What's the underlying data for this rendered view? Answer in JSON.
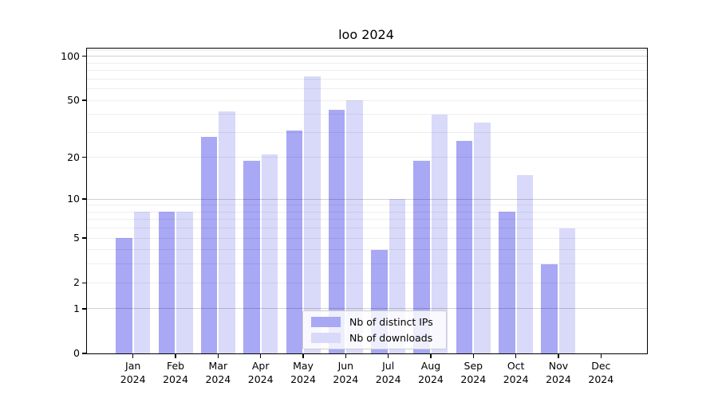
{
  "title": "loo 2024",
  "chart_data": {
    "type": "bar",
    "title": "loo 2024",
    "xlabel": "",
    "ylabel": "",
    "categories": [
      "Jan",
      "Feb",
      "Mar",
      "Apr",
      "May",
      "Jun",
      "Jul",
      "Aug",
      "Sep",
      "Oct",
      "Nov",
      "Dec"
    ],
    "year_line": "2024",
    "series": [
      {
        "name": "Nb of distinct IPs",
        "color": "#a8a8f5",
        "values": [
          5,
          8,
          28,
          19,
          31,
          43,
          4,
          19,
          26,
          8,
          3,
          0
        ]
      },
      {
        "name": "Nb of downloads",
        "color": "#d9d9fa",
        "values": [
          8,
          8,
          42,
          21,
          73,
          50,
          10,
          40,
          35,
          15,
          6,
          0
        ]
      }
    ],
    "yscale": "log1p",
    "ylim": [
      0,
      113
    ],
    "yticks": [
      0,
      1,
      2,
      5,
      10,
      20,
      50,
      100
    ],
    "major_gridlines": [
      1,
      10,
      100
    ],
    "minor_gridlines": [
      2,
      3,
      4,
      5,
      6,
      7,
      8,
      9,
      20,
      30,
      40,
      50,
      60,
      70,
      80,
      90,
      110
    ],
    "grid": "horizontal",
    "legend_position": "lower center",
    "bars_absent_for": [
      "Dec"
    ]
  },
  "colors": {
    "axis": "#000000",
    "background": "#ffffff"
  }
}
